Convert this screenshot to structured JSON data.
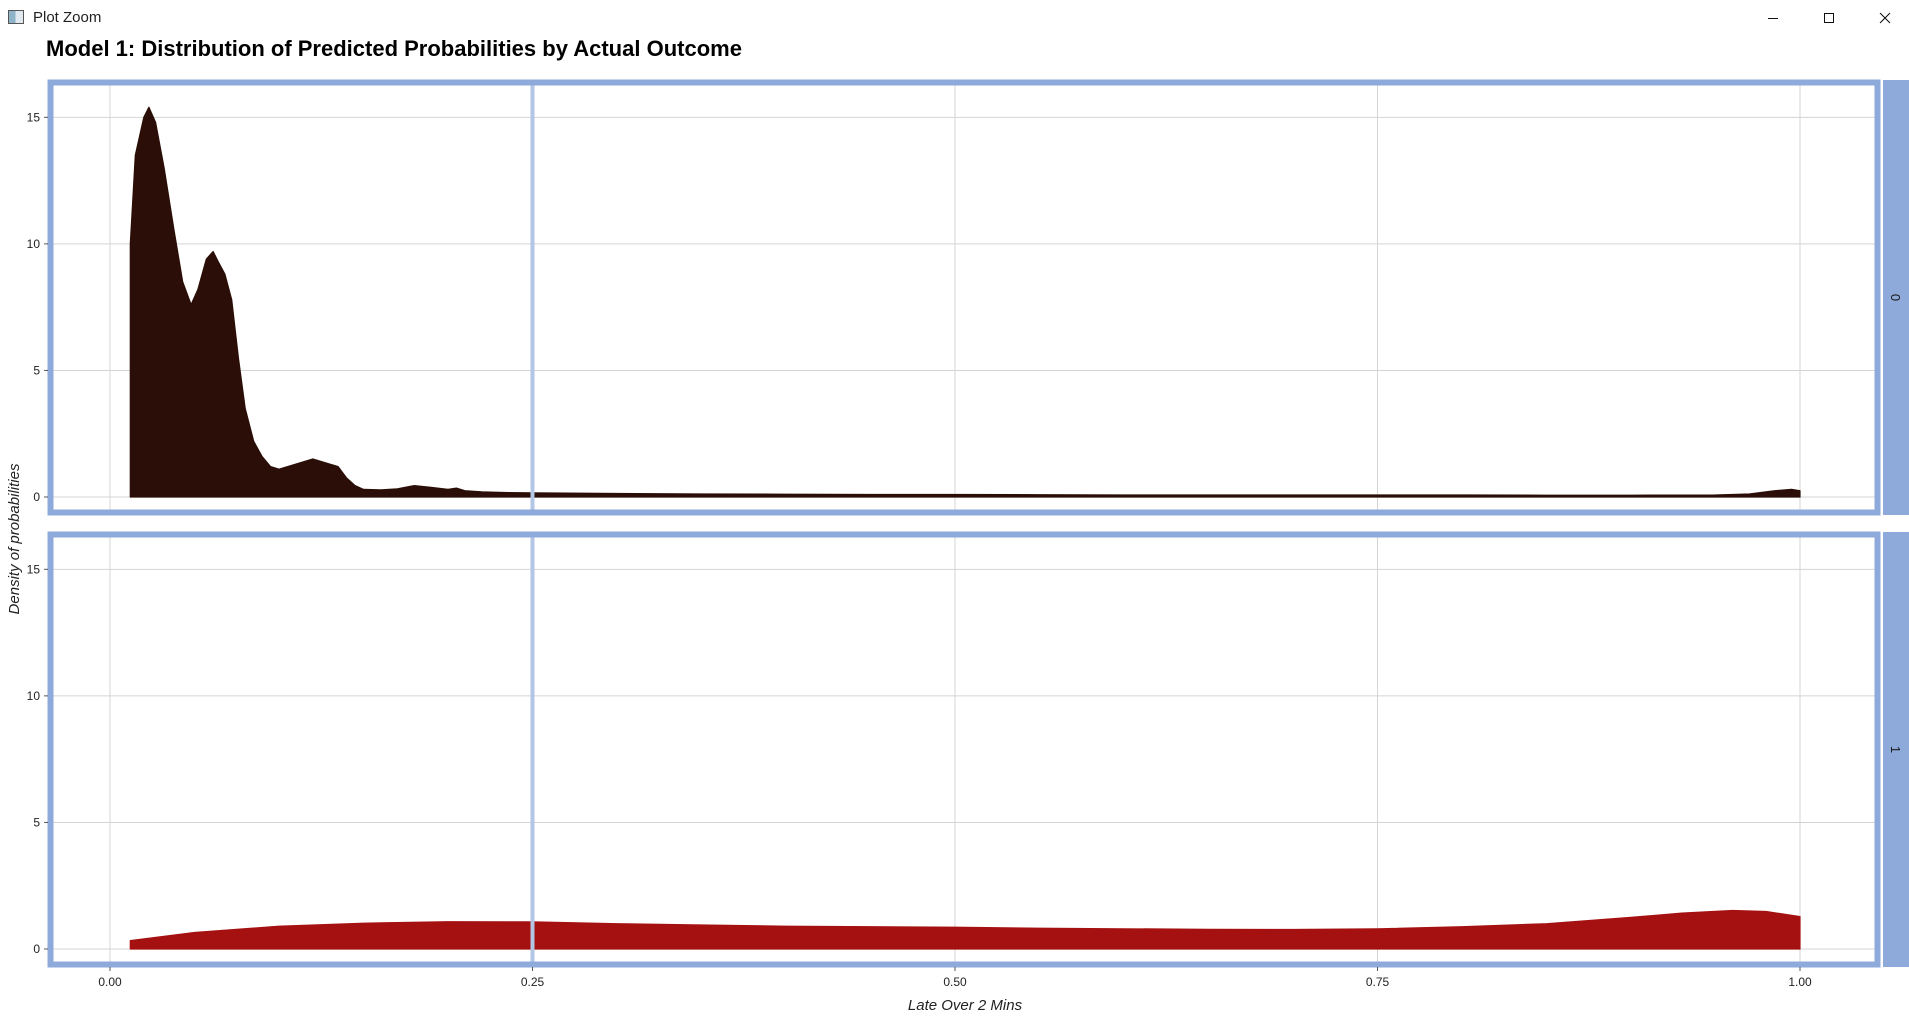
{
  "window": {
    "title": "Plot Zoom",
    "icon": "plot-window-icon",
    "controls": {
      "minimize_icon": "minimize-icon",
      "maximize_icon": "maximize-icon",
      "close_icon": "close-icon"
    }
  },
  "chart_data": {
    "type": "area",
    "title": "Model 1: Distribution of Predicted Probabilities by Actual Outcome",
    "xlabel": "Late Over 2 Mins",
    "ylabel": "Density of probabilities",
    "xlim": [
      0,
      1
    ],
    "ylim": [
      0,
      16
    ],
    "x_ticks": [
      0,
      0.25,
      0.5,
      0.75,
      1
    ],
    "x_tick_labels": [
      "0.00",
      "0.25",
      "0.50",
      "0.75",
      "1.00"
    ],
    "y_ticks": [
      0,
      5,
      10,
      15
    ],
    "y_tick_labels": [
      "0",
      "5",
      "10",
      "15"
    ],
    "grid": true,
    "reference_line": {
      "x": 0.25,
      "color": "#b3c6e4"
    },
    "panel_border_color": "#8eaadb",
    "strip_color": "#8eaadb",
    "panels": [
      {
        "strip_label": "0",
        "fill": "#2a0e07",
        "x": [
          0.012,
          0.012,
          0.015,
          0.02,
          0.023,
          0.027,
          0.032,
          0.038,
          0.043,
          0.048,
          0.052,
          0.057,
          0.061,
          0.064,
          0.068,
          0.072,
          0.076,
          0.08,
          0.085,
          0.09,
          0.095,
          0.1,
          0.11,
          0.12,
          0.13,
          0.135,
          0.14,
          0.145,
          0.15,
          0.16,
          0.17,
          0.18,
          0.19,
          0.2,
          0.205,
          0.21,
          0.22,
          0.23,
          0.25,
          0.3,
          0.35,
          0.4,
          0.45,
          0.5,
          0.55,
          0.6,
          0.65,
          0.7,
          0.75,
          0.8,
          0.85,
          0.9,
          0.95,
          0.97,
          0.985,
          0.995,
          1.0
        ],
        "y": [
          0,
          10.0,
          13.5,
          15.0,
          15.4,
          14.8,
          13.0,
          10.5,
          8.5,
          7.6,
          8.2,
          9.4,
          9.7,
          9.3,
          8.8,
          7.8,
          5.5,
          3.5,
          2.2,
          1.6,
          1.2,
          1.1,
          1.3,
          1.5,
          1.3,
          1.2,
          0.75,
          0.45,
          0.3,
          0.28,
          0.32,
          0.45,
          0.38,
          0.3,
          0.35,
          0.25,
          0.2,
          0.18,
          0.16,
          0.14,
          0.12,
          0.11,
          0.1,
          0.1,
          0.09,
          0.08,
          0.08,
          0.08,
          0.08,
          0.08,
          0.07,
          0.07,
          0.08,
          0.12,
          0.25,
          0.3,
          0.25
        ]
      },
      {
        "strip_label": "1",
        "fill": "#a51010",
        "x": [
          0.012,
          0.012,
          0.05,
          0.1,
          0.15,
          0.2,
          0.25,
          0.3,
          0.35,
          0.4,
          0.45,
          0.5,
          0.55,
          0.6,
          0.65,
          0.7,
          0.75,
          0.8,
          0.85,
          0.9,
          0.93,
          0.96,
          0.98,
          1.0
        ],
        "y": [
          0,
          0.33,
          0.65,
          0.9,
          1.02,
          1.08,
          1.07,
          1.0,
          0.95,
          0.9,
          0.88,
          0.86,
          0.82,
          0.8,
          0.78,
          0.77,
          0.8,
          0.88,
          1.0,
          1.25,
          1.42,
          1.52,
          1.48,
          1.28
        ]
      }
    ]
  }
}
